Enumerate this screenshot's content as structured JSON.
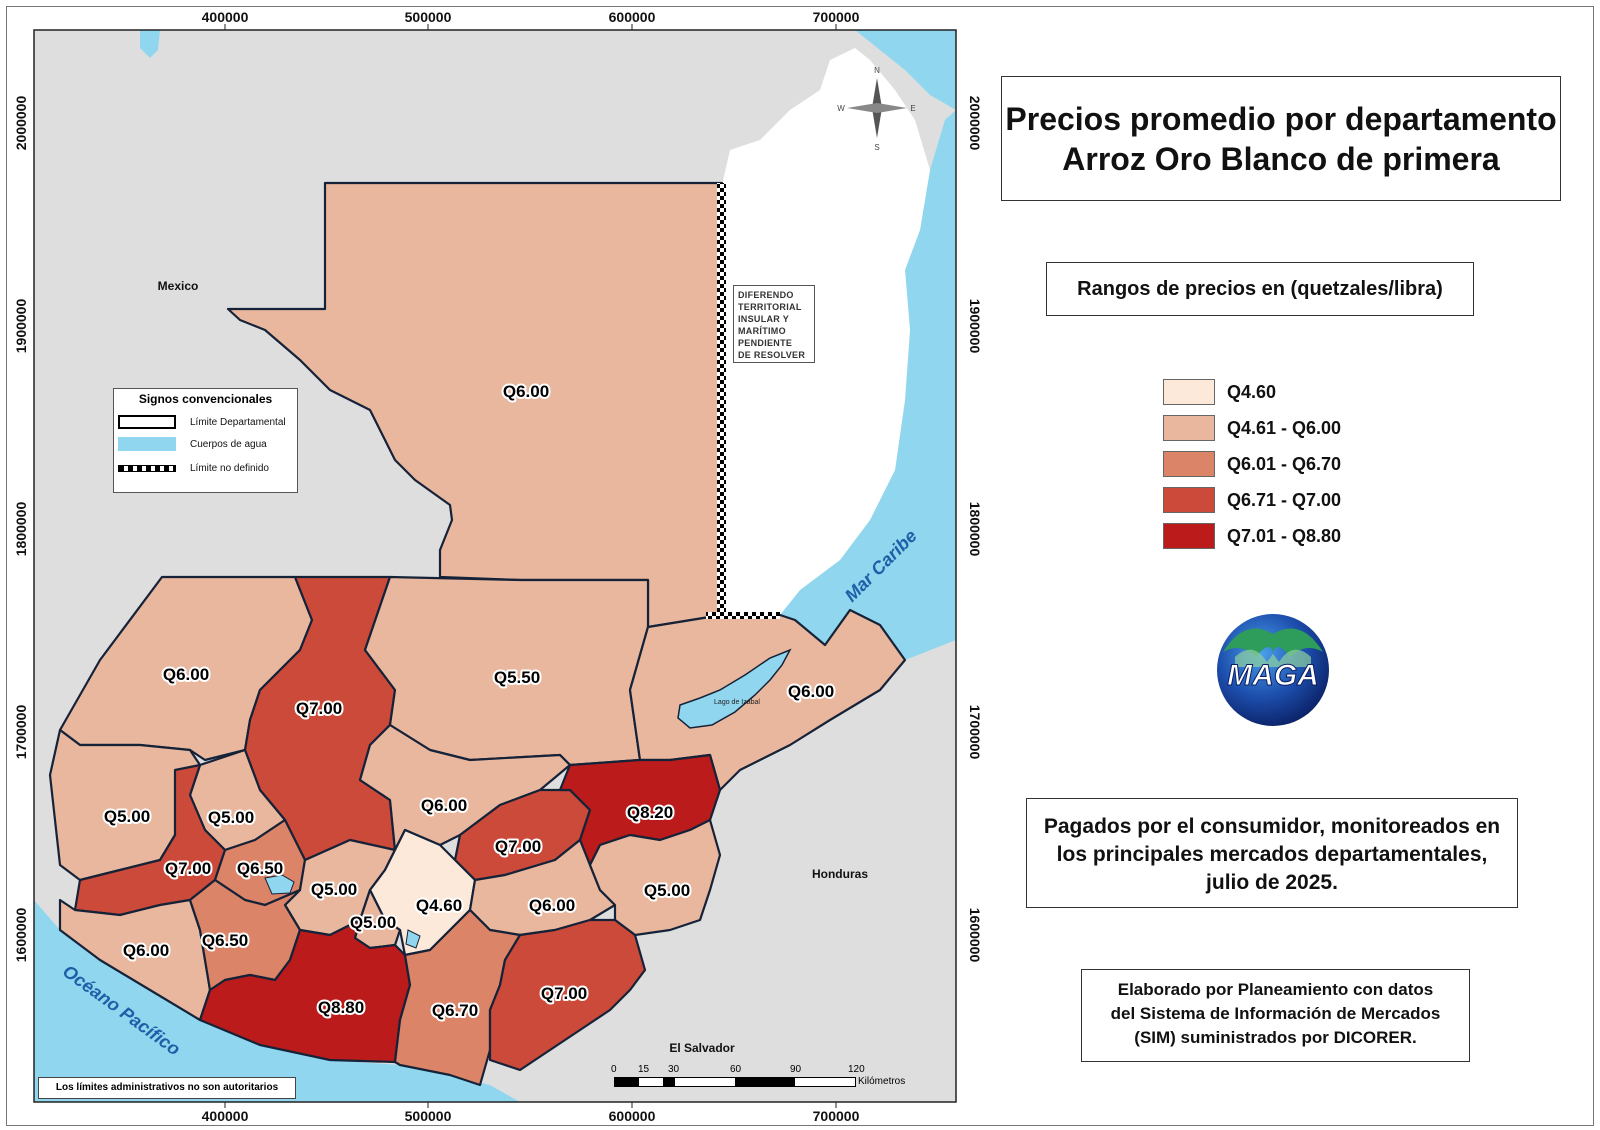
{
  "title": {
    "line1": "Precios promedio por departamento",
    "line2": "Arroz Oro Blanco de primera"
  },
  "ranges_title": "Rangos de precios en (quetzales/libra)",
  "legend": [
    {
      "label": "Q4.60",
      "color": "#fce9d9"
    },
    {
      "label": "Q4.61 - Q6.00",
      "color": "#e9b79e"
    },
    {
      "label": "Q6.01 - Q6.70",
      "color": "#dc8468"
    },
    {
      "label": "Q6.71 - Q7.00",
      "color": "#cc4a3a"
    },
    {
      "label": "Q7.01 - Q8.80",
      "color": "#bb1b1b"
    }
  ],
  "note": {
    "line1": "Pagados por el consumidor, monitoreados en",
    "line2": "los principales mercados departamentales,",
    "line3": "julio de 2025."
  },
  "credit": {
    "line1": "Elaborado por Planeamiento con datos",
    "line2": "del Sistema de Información de Mercados",
    "line3": "(SIM) suministrados por DICORER."
  },
  "logo_text": "MAGA",
  "signos": {
    "title": "Signos convencionales",
    "items": [
      "Límite Departamental",
      "Cuerpos de agua",
      "Límite no definido"
    ]
  },
  "disclaimer": "Los límites administrativos no son autoritarios",
  "diferendo": [
    "DIFERENDO",
    "TERRITORIAL",
    "INSULAR Y",
    "MARÍTIMO",
    "PENDIENTE",
    "DE RESOLVER"
  ],
  "places": {
    "mexico": "Mexico",
    "honduras": "Honduras",
    "el_salvador": "El Salvador",
    "lago": "Lago de Izabal",
    "mar_caribe": "Mar Caribe",
    "oceano": "Océano Pacífico"
  },
  "compass": {
    "n": "N",
    "s": "S",
    "e": "E",
    "w": "W"
  },
  "x_ticks": [
    "400000",
    "500000",
    "600000",
    "700000"
  ],
  "y_ticks": [
    "2000000",
    "1900000",
    "1800000",
    "1700000",
    "1600000"
  ],
  "scale": {
    "labels": [
      "0",
      "15",
      "30",
      "60",
      "90",
      "120"
    ],
    "unit": "Kilómetros"
  },
  "departments": {
    "peten": "Q6.00",
    "huehuetenango": "Q6.00",
    "quiche": "Q7.00",
    "alta_verapaz": "Q5.50",
    "izabal": "Q6.00",
    "san_marcos": "Q5.00",
    "totonicapan": "Q5.00",
    "quetzaltenango": "Q7.00",
    "solola": "Q6.50",
    "baja_verapaz": "Q6.00",
    "el_progreso": "Q7.00",
    "zacapa": "Q8.20",
    "chimaltenango": "Q5.00",
    "guatemala": "Q4.60",
    "sacatepequez": "Q5.00",
    "jalapa": "Q6.00",
    "chiquimula": "Q5.00",
    "retalhuleu": "Q6.00",
    "suchitepequez": "Q6.50",
    "escuintla": "Q8.80",
    "santa_rosa": "Q6.70",
    "jutiapa": "Q7.00"
  }
}
